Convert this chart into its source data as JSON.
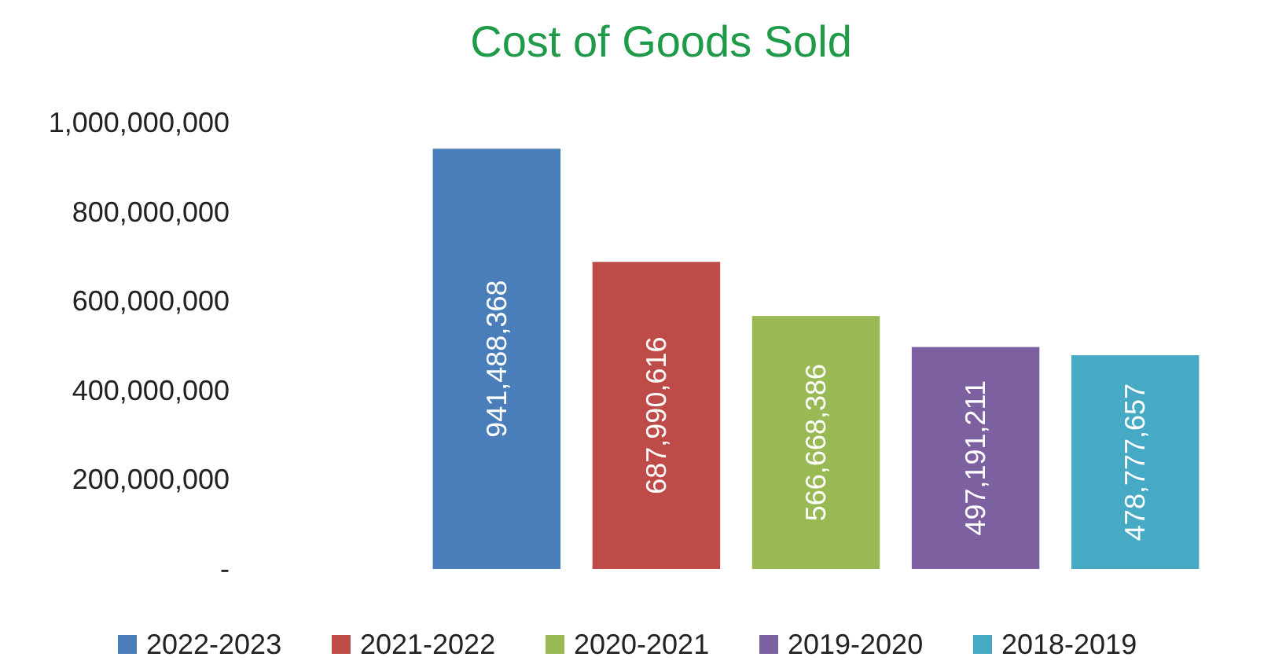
{
  "chart_data": {
    "type": "bar",
    "title": "Cost of Goods Sold",
    "categories": [
      null,
      null,
      null,
      null,
      null
    ],
    "stacked": true,
    "series": [
      {
        "name": "2022-2023",
        "color": "#4a7ebb",
        "values": [
          941488368,
          null,
          null,
          null,
          null
        ],
        "value_labels": [
          "941,488,368",
          null,
          null,
          null,
          null
        ]
      },
      {
        "name": "2021-2022",
        "color": "#be4b48",
        "values": [
          null,
          687990616,
          null,
          null,
          null
        ],
        "value_labels": [
          null,
          "687,990,616",
          null,
          null,
          null
        ]
      },
      {
        "name": "2020-2021",
        "color": "#98b954",
        "values": [
          null,
          null,
          566668386,
          null,
          null
        ],
        "value_labels": [
          null,
          null,
          "566,668,386",
          null,
          null
        ]
      },
      {
        "name": "2019-2020",
        "color": "#7d60a0",
        "values": [
          null,
          null,
          null,
          497191211,
          null
        ],
        "value_labels": [
          null,
          null,
          null,
          "497,191,211",
          null
        ]
      },
      {
        "name": "2018-2019",
        "color": "#46aac5",
        "values": [
          null,
          null,
          null,
          null,
          478777657
        ],
        "value_labels": [
          null,
          null,
          null,
          null,
          "478,777,657"
        ]
      }
    ],
    "ylim": [
      0,
      1000000000
    ],
    "yticks": [
      {
        "value": 0,
        "label": "-"
      },
      {
        "value": 200000000,
        "label": "200,000,000"
      },
      {
        "value": 400000000,
        "label": "400,000,000"
      },
      {
        "value": 600000000,
        "label": "600,000,000"
      },
      {
        "value": 800000000,
        "label": "800,000,000"
      },
      {
        "value": 1000000000,
        "label": "1,000,000,000"
      }
    ],
    "tick_labels": "y",
    "legend": "bottom",
    "grid": false
  }
}
